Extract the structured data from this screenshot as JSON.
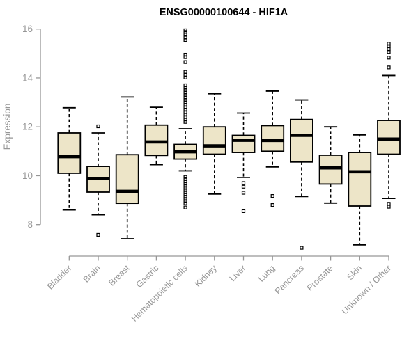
{
  "chart_data": {
    "type": "boxplot",
    "title": "ENSG00000100644 - HIF1A",
    "xlabel": "",
    "ylabel": "Expression",
    "yticks": [
      8,
      10,
      12,
      14,
      16
    ],
    "ylim": [
      6.7,
      16.3
    ],
    "grid": false,
    "legend": "none",
    "categories": [
      "Bladder",
      "Brain",
      "Breast",
      "Gastric",
      "Hematopoietic cells",
      "Kidney",
      "Liver",
      "Lung",
      "Pancreas",
      "Prostate",
      "Skin",
      "Unknown / Other"
    ],
    "series": [
      {
        "label": "Bladder",
        "whisker_low": 8.6,
        "q1": 10.1,
        "median": 10.78,
        "q3": 11.75,
        "whisker_high": 12.78,
        "outliers": []
      },
      {
        "label": "Brain",
        "whisker_low": 8.4,
        "q1": 9.33,
        "median": 9.88,
        "q3": 10.38,
        "whisker_high": 11.75,
        "outliers": [
          12.02,
          7.58
        ]
      },
      {
        "label": "Breast",
        "whisker_low": 7.42,
        "q1": 8.87,
        "median": 9.36,
        "q3": 10.86,
        "whisker_high": 13.22,
        "outliers": []
      },
      {
        "label": "Gastric",
        "whisker_low": 10.45,
        "q1": 10.83,
        "median": 11.38,
        "q3": 12.07,
        "whisker_high": 12.8,
        "outliers": []
      },
      {
        "label": "Hematopoietic cells",
        "whisker_low": 10.2,
        "q1": 10.68,
        "median": 10.98,
        "q3": 11.28,
        "whisker_high": 11.92,
        "outliers": [
          15.95,
          15.88,
          15.78,
          15.65,
          15.55,
          14.95,
          14.85,
          14.65,
          14.25,
          14.12,
          14.02,
          13.7,
          13.6,
          13.5,
          13.4,
          13.3,
          13.2,
          13.1,
          13.0,
          12.9,
          12.8,
          12.7,
          12.6,
          12.5,
          12.4,
          12.3,
          12.2,
          9.95,
          9.86,
          9.77,
          9.68,
          9.59,
          9.5,
          9.41,
          9.32,
          9.23,
          9.14,
          9.05,
          8.96,
          8.87,
          8.7
        ]
      },
      {
        "label": "Kidney",
        "whisker_low": 9.25,
        "q1": 10.88,
        "median": 11.22,
        "q3": 12.0,
        "whisker_high": 13.35,
        "outliers": []
      },
      {
        "label": "Liver",
        "whisker_low": 9.93,
        "q1": 10.95,
        "median": 11.45,
        "q3": 11.65,
        "whisker_high": 12.56,
        "outliers": [
          9.7,
          9.55,
          9.3,
          8.55
        ]
      },
      {
        "label": "Lung",
        "whisker_low": 10.36,
        "q1": 11.0,
        "median": 11.44,
        "q3": 12.05,
        "whisker_high": 13.46,
        "outliers": [
          9.17,
          8.8
        ]
      },
      {
        "label": "Pancreas",
        "whisker_low": 9.15,
        "q1": 10.56,
        "median": 11.65,
        "q3": 12.3,
        "whisker_high": 13.1,
        "outliers": [
          7.05
        ]
      },
      {
        "label": "Prostate",
        "whisker_low": 8.88,
        "q1": 9.66,
        "median": 10.32,
        "q3": 10.84,
        "whisker_high": 12.0,
        "outliers": []
      },
      {
        "label": "Skin",
        "whisker_low": 7.17,
        "q1": 8.76,
        "median": 10.16,
        "q3": 10.95,
        "whisker_high": 11.67,
        "outliers": []
      },
      {
        "label": "Unknown / Other",
        "whisker_low": 9.07,
        "q1": 10.88,
        "median": 11.5,
        "q3": 12.26,
        "whisker_high": 14.1,
        "outliers": [
          15.4,
          15.3,
          15.18,
          15.06,
          14.83,
          14.43,
          8.85,
          8.73
        ]
      }
    ],
    "colors": {
      "box_fill": "#EDE5C8",
      "box_stroke": "#000000",
      "median": "#000000",
      "axis": "#969696",
      "title": "#000000"
    }
  }
}
